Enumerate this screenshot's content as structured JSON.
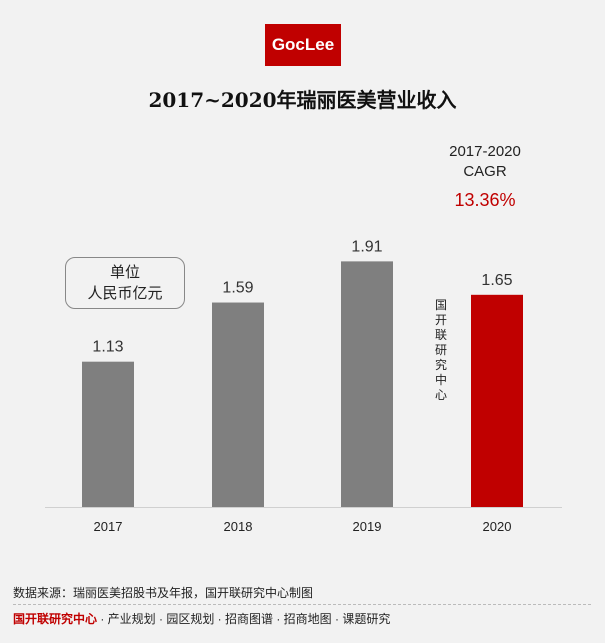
{
  "logo": "GocLee",
  "title": "2017~2020年瑞丽医美营业收入",
  "unit_label": [
    "单位",
    "人民币亿元"
  ],
  "cagr": {
    "label1": "2017-2020",
    "label2": "CAGR",
    "value": "13.36%"
  },
  "watermark": "国开联研究中心",
  "chart_data": {
    "type": "bar",
    "title": "2017~2020年瑞丽医美营业收入",
    "categories": [
      "2017",
      "2018",
      "2019",
      "2020"
    ],
    "values": [
      1.13,
      1.59,
      1.91,
      1.65
    ],
    "labels": [
      "1.13",
      "1.59",
      "1.91",
      "1.65"
    ],
    "ylabel": "人民币亿元",
    "ylim": [
      0,
      2.2
    ],
    "colors": [
      "#7f7f7f",
      "#7f7f7f",
      "#7f7f7f",
      "#c00000"
    ]
  },
  "source": "数据来源：瑞丽医美招股书及年报，国开联研究中心制图",
  "footer": {
    "brand": "国开联研究中心",
    "items": " · 产业规划 · 园区规划 · 招商图谱 · 招商地图 · 课题研究"
  }
}
